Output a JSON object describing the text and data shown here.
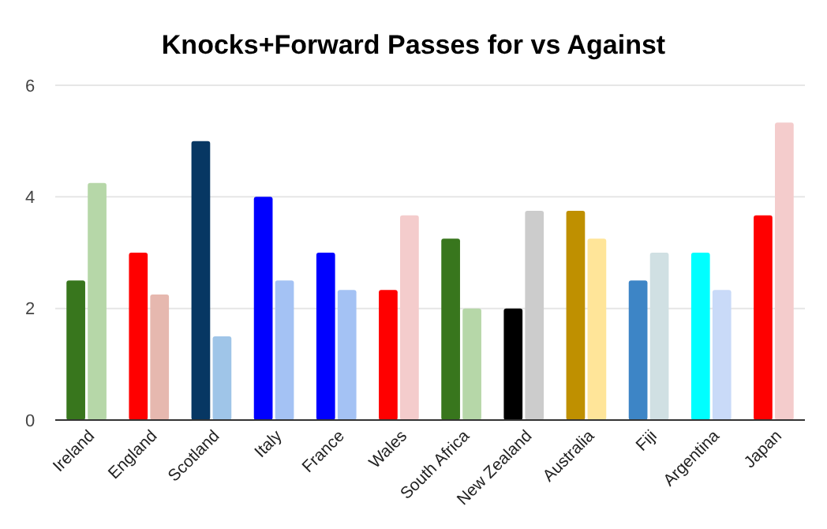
{
  "chart_data": {
    "type": "bar",
    "title": "Knocks+Forward Passes for vs Against",
    "categories": [
      "Ireland",
      "England",
      "Scotland",
      "Italy",
      "France",
      "Wales",
      "South Africa",
      "New Zealand",
      "Australia",
      "Fiji",
      "Argentina",
      "Japan"
    ],
    "series": [
      {
        "colors": [
          "#38761d",
          "#ff0000",
          "#073763",
          "#0000ff",
          "#0000ff",
          "#ff0000",
          "#38761d",
          "#000000",
          "#bf9000",
          "#3d85c6",
          "#00ffff",
          "#ff0000"
        ],
        "values": [
          2.5,
          3,
          5,
          4,
          3,
          2.33,
          3.25,
          2,
          3.75,
          2.5,
          3,
          3.67
        ]
      },
      {
        "colors": [
          "#b6d7a8",
          "#e6b8af",
          "#9fc5e8",
          "#a4c2f4",
          "#a4c2f4",
          "#f4cccc",
          "#b6d7a8",
          "#cccccc",
          "#ffe599",
          "#d0e0e3",
          "#c9daf8",
          "#f4cccc"
        ],
        "values": [
          4.25,
          2.25,
          1.5,
          2.5,
          2.33,
          3.67,
          2,
          3.75,
          3.25,
          3,
          2.33,
          5.33
        ]
      }
    ],
    "ylim": [
      0,
      6
    ],
    "yticks": [
      0,
      2,
      4,
      6
    ],
    "grid": "y"
  }
}
